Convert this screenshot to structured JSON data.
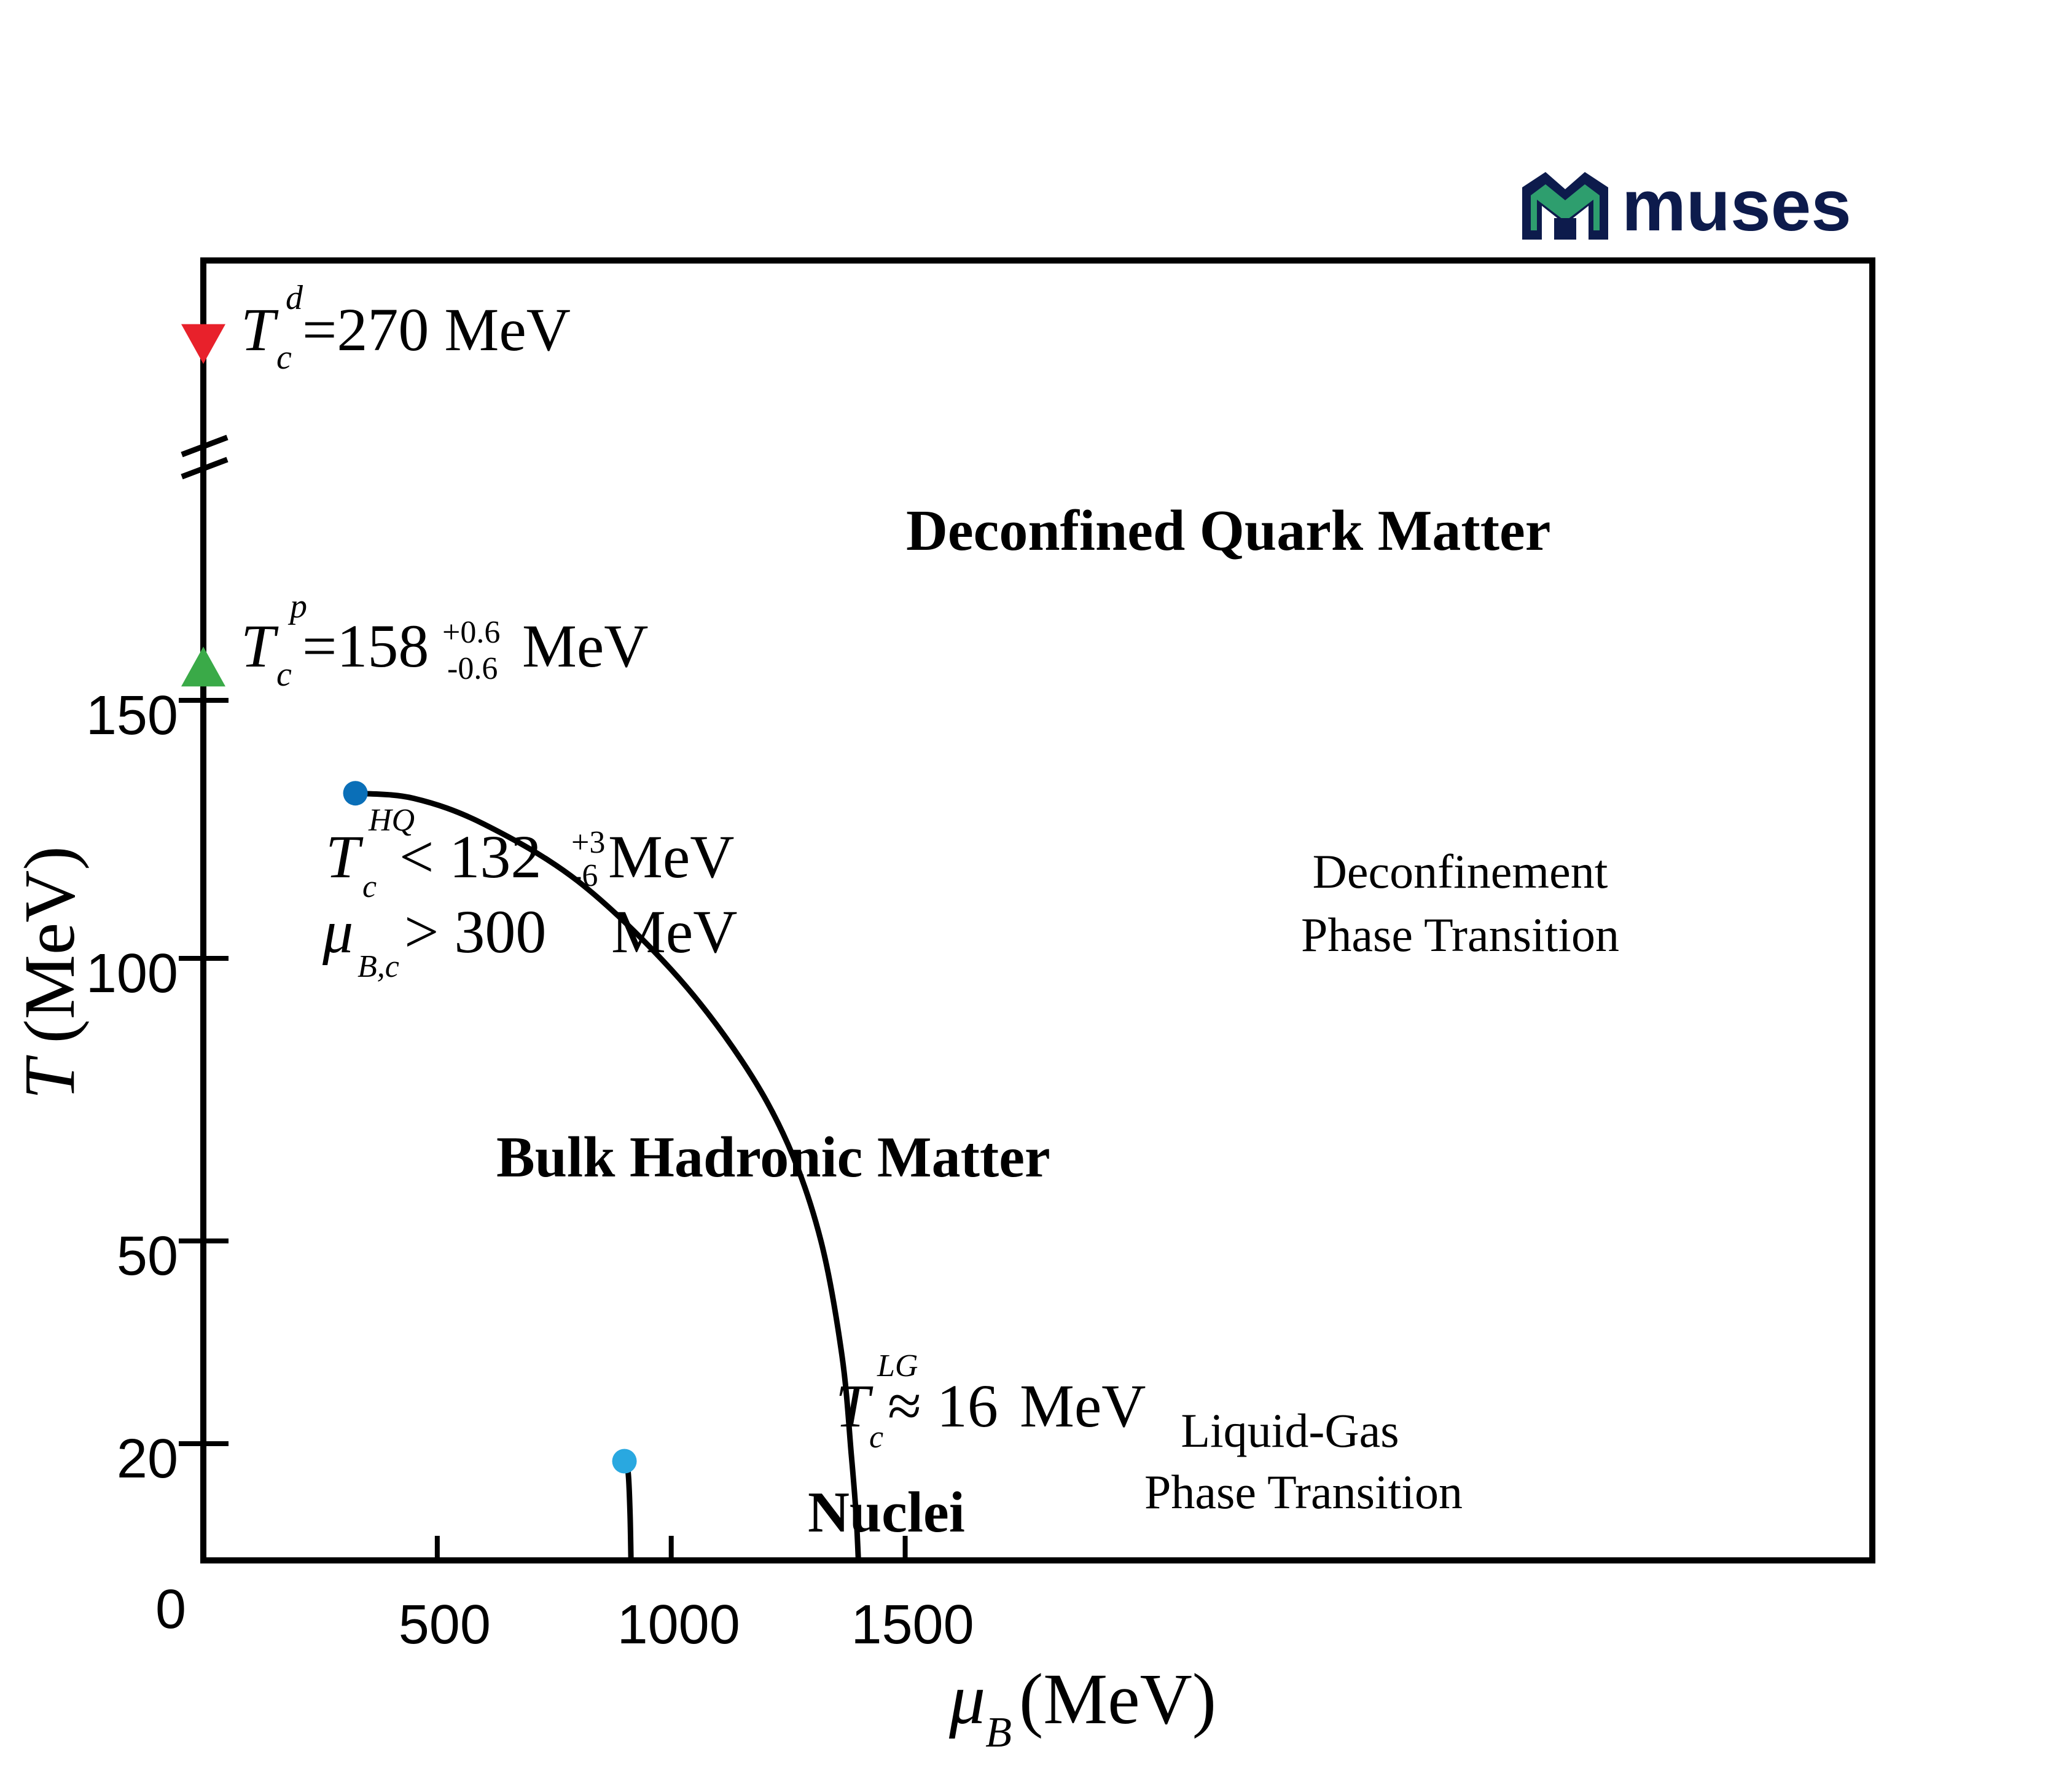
{
  "logo": {
    "text": "muses",
    "color": "#0d1b4c",
    "accent": "#2e9e6e"
  },
  "colors": {
    "axis": "#000000",
    "curve": "#000000",
    "tcd": "#e8212b",
    "tcp": "#3aaa48",
    "hq": "#0a6fb8",
    "lg": "#29a8e0"
  },
  "chart_data": {
    "type": "line",
    "xlabel_symbol": "μ",
    "xlabel_sub": "B",
    "xlabel_unit": "(MeV)",
    "ylabel_symbol": "T",
    "ylabel_unit": "(MeV)",
    "xlim": [
      0,
      1800
    ],
    "ylim": [
      0,
      170
    ],
    "x_ticks": [
      {
        "value": 0,
        "label": "0"
      },
      {
        "value": 500,
        "label": "500"
      },
      {
        "value": 1000,
        "label": "1000"
      },
      {
        "value": 1500,
        "label": "1500"
      }
    ],
    "y_ticks": [
      {
        "value": 20,
        "label": "20"
      },
      {
        "value": 50,
        "label": "50"
      },
      {
        "value": 100,
        "label": "100"
      },
      {
        "value": 150,
        "label": "150"
      }
    ],
    "axis_break": "broken y-axis between 150 MeV range and 270 MeV marker",
    "series": [
      {
        "x": [
          325,
          450,
          600,
          800,
          1000,
          1150,
          1250,
          1320,
          1365,
          1385,
          1395,
          1400
        ],
        "y": [
          132,
          131,
          126,
          115,
          98,
          82,
          67,
          50,
          33,
          18,
          8,
          0
        ]
      },
      {
        "x": [
          900,
          908,
          912,
          914
        ],
        "y": [
          17,
          15,
          8,
          0
        ]
      }
    ],
    "critical_points": [
      {
        "name": "hq",
        "x": 325,
        "y": 132
      },
      {
        "name": "lg",
        "x": 900,
        "y": 17
      }
    ],
    "markers": [
      {
        "name": "tcd",
        "shape": "triangle-down",
        "x": 0,
        "y": 270
      },
      {
        "name": "tcp",
        "shape": "triangle-up",
        "x": 0,
        "y": 158
      }
    ],
    "annotations": {
      "tcd": {
        "T": "T",
        "sup": "d",
        "sub": "c",
        "text": "=270 MeV"
      },
      "tcp": {
        "T": "T",
        "sup": "p",
        "sub": "c",
        "text": "=158",
        "err_sup": "+0.6",
        "err_sub": "-0.6",
        "unit": "MeV"
      },
      "hq_t": {
        "T": "T",
        "sup": "HQ",
        "sub": "c",
        "text": "< 132",
        "err_sup": "+3",
        "err_sub": "-6",
        "unit": "MeV"
      },
      "hq_mu": {
        "mu": "μ",
        "sub": "B,c",
        "text": "> 300",
        "unit": "MeV"
      },
      "lg": {
        "T": "T",
        "sup": "LG",
        "sub": "c",
        "text": "≈ 16",
        "unit": "MeV"
      }
    },
    "regions": {
      "deconfined": "Deconfined Quark Matter",
      "hadronic": "Bulk Hadronic Matter",
      "nuclei": "Nuclei"
    },
    "transitions": {
      "deconf_line1": "Deconfinement",
      "deconf_line2": "Phase Transition",
      "lg_line1": "Liquid-Gas",
      "lg_line2": "Phase Transition"
    }
  }
}
